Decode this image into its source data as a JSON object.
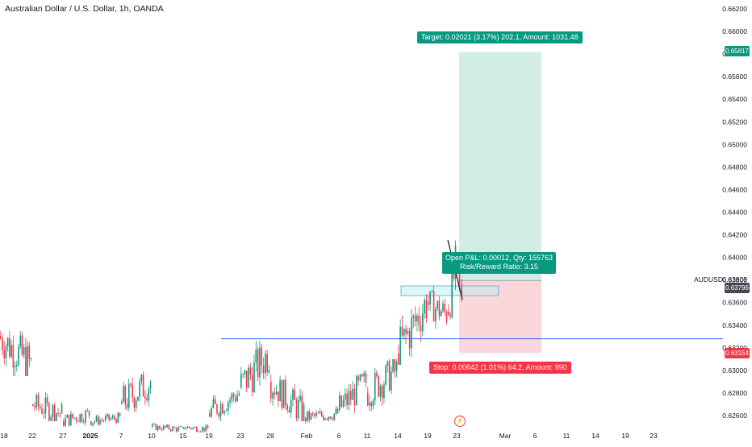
{
  "header": {
    "title": "Australian Dollar / U.S. Dollar, 1h, OANDA"
  },
  "colors": {
    "up_candle": "#089981",
    "down_candle": "#f23645",
    "target_zone": "#d2ece6",
    "stop_zone": "#fbd7db",
    "hline": "#2962ff",
    "target_tag": "#089981",
    "stop_tag": "#f23645"
  },
  "chart_data": {
    "type": "candlestick",
    "symbol": "AUDUSD",
    "title": "Australian Dollar / U.S. Dollar, 1h, OANDA",
    "y_axis": {
      "ticks": [
        "0.62600",
        "0.62800",
        "0.63000",
        "0.63200",
        "0.63400",
        "0.63600",
        "0.63800",
        "0.64000",
        "0.64200",
        "0.64400",
        "0.64600",
        "0.64800",
        "0.65000",
        "0.65200",
        "0.65400",
        "0.65600",
        "0.65800",
        "0.66000",
        "0.66200"
      ],
      "range": [
        0.6248,
        0.6628
      ]
    },
    "x_axis": {
      "ticks": [
        "18",
        "22",
        "27",
        "2025",
        "7",
        "10",
        "15",
        "19",
        "23",
        "28",
        "Feb",
        "6",
        "11",
        "14",
        "19",
        "23",
        "Mar",
        "6",
        "11",
        "14",
        "19",
        "23"
      ]
    },
    "price_labels": {
      "target_price": "0.65817",
      "symbol_label": "AUDUSD",
      "symbol_value": "0.63808",
      "current_price": "0.63796",
      "stop_price": "0.63154"
    },
    "position_tool": {
      "type": "long",
      "entry": 0.63796,
      "target": 0.65817,
      "stop": 0.63154,
      "target_label": "Target: 0.02021 (3.17%) 202.1, Amount: 1031.48",
      "stop_label": "Stop: 0.00642 (1.01%) 64.2, Amount: 990",
      "open_pnl_label": "Open P&L: 0.00012, Qty: 155763",
      "rr_label": "Risk/Reward Ratio: 3.15"
    },
    "horizontal_line": 0.6328,
    "series": [
      {
        "date": "Dec 18",
        "values": [
          0.6355,
          0.6295,
          0.633,
          0.6305
        ]
      },
      {
        "date": "Dec 22",
        "values": [
          0.629,
          0.6255,
          0.627,
          0.6262
        ]
      },
      {
        "date": "Dec 27",
        "values": [
          0.6272,
          0.625,
          0.6255,
          0.6262
        ]
      },
      {
        "date": "2025",
        "values": [
          0.6265,
          0.625,
          0.6255,
          0.6258
        ]
      },
      {
        "date": "Jan 7",
        "values": [
          0.6305,
          0.6255,
          0.627,
          0.629
        ]
      },
      {
        "date": "Jan 10",
        "values": [
          0.6255,
          0.6245,
          0.625,
          0.6248
        ]
      },
      {
        "date": "Jan 15",
        "values": [
          0.6255,
          0.6245,
          0.625,
          0.6248
        ]
      },
      {
        "date": "Jan 19",
        "values": [
          0.629,
          0.6255,
          0.6262,
          0.628
        ]
      },
      {
        "date": "Jan 23",
        "values": [
          0.633,
          0.627,
          0.6285,
          0.6315
        ]
      },
      {
        "date": "Jan 28",
        "values": [
          0.63,
          0.6255,
          0.629,
          0.6262
        ]
      },
      {
        "date": "Feb",
        "values": [
          0.627,
          0.625,
          0.6258,
          0.6262
        ]
      },
      {
        "date": "Feb 6",
        "values": [
          0.63,
          0.6255,
          0.6265,
          0.629
        ]
      },
      {
        "date": "Feb 11",
        "values": [
          0.631,
          0.626,
          0.628,
          0.63
        ]
      },
      {
        "date": "Feb 14",
        "values": [
          0.6375,
          0.6305,
          0.6315,
          0.636
        ]
      },
      {
        "date": "Feb 19",
        "values": [
          0.6375,
          0.633,
          0.636,
          0.635
        ]
      },
      {
        "date": "Feb 21",
        "values": [
          0.6415,
          0.6345,
          0.6352,
          0.639
        ]
      },
      {
        "date": "Feb 24",
        "values": [
          0.64,
          0.6355,
          0.639,
          0.6362
        ]
      }
    ]
  }
}
